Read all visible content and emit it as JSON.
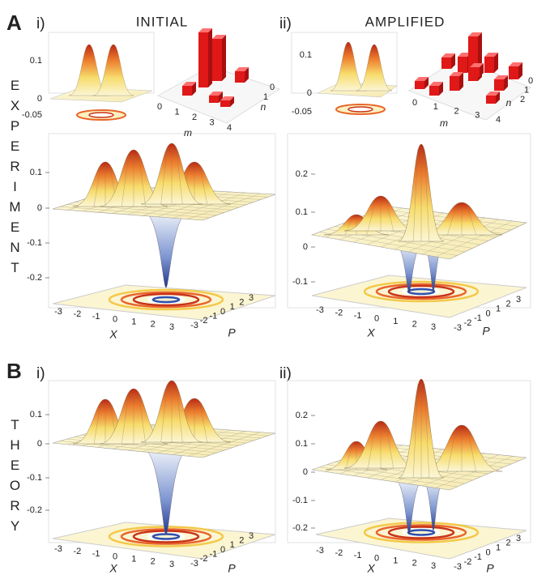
{
  "columns": [
    {
      "label": "i)",
      "title": "INITIAL"
    },
    {
      "label": "ii)",
      "title": "AMPLIFIED"
    }
  ],
  "rows": [
    {
      "letter": "A",
      "label": "EXPERIMENT"
    },
    {
      "letter": "B",
      "label": "THEORY"
    }
  ],
  "insets": [
    {
      "z_ticks": [
        "0.1",
        "0",
        "-0.05"
      ],
      "m_label": "m",
      "n_label": "n",
      "m_ticks": [
        "0",
        "1",
        "2",
        "3",
        "4"
      ],
      "n_ticks": [
        "0",
        "1"
      ]
    },
    {
      "z_ticks": [
        "0.1",
        "0",
        "-0.05"
      ],
      "m_label": "m",
      "n_label": "n",
      "m_ticks": [
        "0",
        "1",
        "2",
        "3",
        "4"
      ],
      "n_ticks": [
        "0",
        "1",
        "2"
      ]
    }
  ],
  "panels": [
    {
      "z_ticks": [
        "0.1",
        "0",
        "-0.1",
        "-0.2"
      ],
      "x_label": "X",
      "p_label": "P",
      "x_ticks": [
        "-3",
        "-2",
        "-1",
        "0",
        "1",
        "2",
        "3"
      ],
      "p_ticks": [
        "-3",
        "-2",
        "-1",
        "0",
        "1",
        "2",
        "3"
      ]
    },
    {
      "z_ticks": [
        "0.2",
        "0.1",
        "0",
        "-0.1"
      ],
      "x_label": "X",
      "p_label": "P",
      "x_ticks": [
        "-3",
        "-2",
        "-1",
        "0",
        "1",
        "2",
        "3"
      ],
      "p_ticks": [
        "-3",
        "-2",
        "-1",
        "0",
        "1",
        "2",
        "3"
      ]
    },
    {
      "z_ticks": [
        "0.1",
        "0",
        "-0.1",
        "-0.2"
      ],
      "x_label": "X",
      "p_label": "P",
      "x_ticks": [
        "-3",
        "-2",
        "-1",
        "0",
        "1",
        "2",
        "3"
      ],
      "p_ticks": [
        "-3",
        "-2",
        "-1",
        "0",
        "1",
        "2",
        "3"
      ]
    },
    {
      "z_ticks": [
        "0.2",
        "0.1",
        "0",
        "-0.1",
        "-0.2"
      ],
      "x_label": "X",
      "p_label": "P",
      "x_ticks": [
        "-3",
        "-2",
        "-1",
        "0",
        "1",
        "2",
        "3"
      ],
      "p_ticks": [
        "-3",
        "-2",
        "-1",
        "0",
        "1",
        "2",
        "3"
      ]
    }
  ]
}
